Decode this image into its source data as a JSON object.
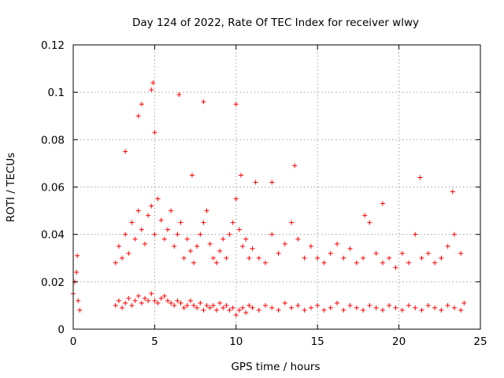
{
  "chart_data": {
    "type": "scatter",
    "title": "Day 124 of 2022, Rate Of TEC Index for receiver wlwy",
    "xlabel": "GPS time / hours",
    "ylabel": "ROTI / TECUs",
    "xlim": [
      0,
      25
    ],
    "ylim": [
      0,
      0.12
    ],
    "x_ticks": [
      "0",
      "5",
      "10",
      "15",
      "20",
      "25"
    ],
    "y_ticks": [
      "0",
      "0.02",
      "0.04",
      "0.06",
      "0.08",
      "0.1",
      "0.12"
    ],
    "grid": true,
    "marker": "plus",
    "color": "#ff0000",
    "series": [
      {
        "x": [
          0.0,
          0.1,
          0.2,
          0.25,
          0.3,
          0.4,
          2.6,
          2.8,
          3.0,
          3.2,
          3.4,
          3.6,
          3.8,
          4.0,
          4.2,
          4.4,
          4.6,
          4.8,
          5.0,
          5.2,
          5.4,
          5.6,
          5.8,
          6.0,
          6.2,
          6.4,
          6.6,
          6.8,
          7.0,
          7.2,
          7.4,
          7.6,
          7.8,
          8.0,
          8.2,
          8.4,
          8.6,
          8.8,
          9.0,
          9.2,
          9.4,
          9.6,
          9.8,
          10.0,
          10.2,
          10.4,
          10.6,
          10.8,
          11.0,
          11.4,
          11.8,
          12.2,
          12.6,
          13.0,
          13.4,
          13.8,
          14.2,
          14.6,
          15.0,
          15.4,
          15.8,
          16.2,
          16.6,
          17.0,
          17.4,
          17.8,
          18.2,
          18.6,
          19.0,
          19.4,
          19.8,
          20.2,
          20.6,
          21.0,
          21.4,
          21.8,
          22.2,
          22.6,
          23.0,
          23.4,
          23.8,
          24.0,
          2.6,
          2.8,
          3.0,
          3.2,
          3.4,
          3.6,
          3.8,
          4.0,
          4.2,
          4.4,
          4.6,
          4.8,
          5.0,
          5.2,
          5.4,
          5.6,
          5.8,
          6.0,
          6.2,
          6.4,
          6.6,
          6.8,
          7.0,
          7.2,
          7.4,
          7.6,
          7.8,
          8.0,
          8.2,
          8.4,
          8.6,
          8.8,
          9.0,
          9.2,
          9.4,
          9.6,
          9.8,
          10.0,
          10.2,
          10.4,
          10.6,
          10.8,
          11.0,
          11.4,
          11.8,
          12.2,
          12.6,
          13.0,
          13.4,
          13.8,
          14.2,
          14.6,
          15.0,
          15.4,
          15.8,
          16.2,
          16.6,
          17.0,
          17.4,
          17.8,
          18.2,
          18.6,
          19.0,
          19.4,
          19.8,
          20.2,
          20.6,
          21.0,
          21.4,
          21.8,
          22.2,
          22.6,
          23.0,
          23.4,
          23.8,
          4.2,
          4.8,
          4.9,
          6.5,
          8.0,
          10.0,
          5.0,
          4.0,
          3.2,
          13.6,
          12.2,
          21.3,
          23.3,
          17.9,
          19.0,
          10.3,
          11.2,
          7.3
        ],
        "y": [
          0.015,
          0.02,
          0.024,
          0.031,
          0.012,
          0.008,
          0.01,
          0.012,
          0.009,
          0.011,
          0.013,
          0.01,
          0.012,
          0.014,
          0.011,
          0.013,
          0.012,
          0.015,
          0.012,
          0.011,
          0.013,
          0.014,
          0.012,
          0.011,
          0.01,
          0.012,
          0.011,
          0.009,
          0.01,
          0.012,
          0.01,
          0.009,
          0.011,
          0.008,
          0.01,
          0.009,
          0.01,
          0.008,
          0.011,
          0.009,
          0.01,
          0.008,
          0.009,
          0.006,
          0.008,
          0.009,
          0.007,
          0.01,
          0.009,
          0.008,
          0.01,
          0.009,
          0.008,
          0.011,
          0.009,
          0.01,
          0.008,
          0.009,
          0.01,
          0.008,
          0.009,
          0.011,
          0.008,
          0.01,
          0.009,
          0.008,
          0.01,
          0.009,
          0.008,
          0.01,
          0.009,
          0.008,
          0.01,
          0.009,
          0.008,
          0.01,
          0.009,
          0.008,
          0.01,
          0.009,
          0.008,
          0.011,
          0.028,
          0.035,
          0.03,
          0.04,
          0.032,
          0.045,
          0.038,
          0.05,
          0.042,
          0.036,
          0.048,
          0.052,
          0.04,
          0.055,
          0.046,
          0.038,
          0.042,
          0.05,
          0.035,
          0.04,
          0.045,
          0.03,
          0.038,
          0.033,
          0.028,
          0.035,
          0.04,
          0.045,
          0.05,
          0.036,
          0.03,
          0.028,
          0.033,
          0.038,
          0.03,
          0.04,
          0.045,
          0.055,
          0.042,
          0.035,
          0.038,
          0.03,
          0.034,
          0.03,
          0.028,
          0.04,
          0.032,
          0.036,
          0.045,
          0.038,
          0.03,
          0.035,
          0.03,
          0.028,
          0.032,
          0.036,
          0.03,
          0.034,
          0.028,
          0.03,
          0.045,
          0.032,
          0.028,
          0.03,
          0.026,
          0.032,
          0.028,
          0.04,
          0.03,
          0.032,
          0.028,
          0.03,
          0.035,
          0.04,
          0.032,
          0.095,
          0.101,
          0.104,
          0.099,
          0.096,
          0.095,
          0.083,
          0.09,
          0.075,
          0.069,
          0.062,
          0.064,
          0.058,
          0.048,
          0.053,
          0.065,
          0.062,
          0.065
        ]
      }
    ]
  }
}
